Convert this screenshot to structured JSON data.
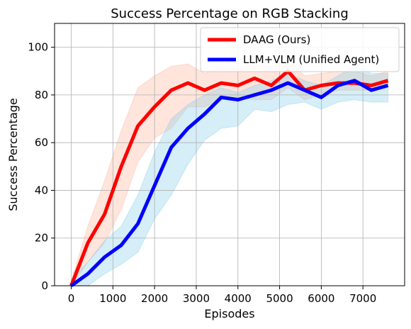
{
  "chart_data": {
    "type": "line",
    "title": "Success Percentage on RGB Stacking",
    "xlabel": "Episodes",
    "ylabel": "Success Percentage",
    "xlim": [
      -400,
      8000
    ],
    "ylim": [
      0,
      110
    ],
    "xticks": [
      0,
      1000,
      2000,
      3000,
      4000,
      5000,
      6000,
      7000
    ],
    "yticks": [
      0,
      20,
      40,
      60,
      80,
      100
    ],
    "grid": true,
    "legend_position": "top-right",
    "series": [
      {
        "name": "DAAG (Ours)",
        "color": "#ff0000",
        "band_color": "#ffb49a",
        "x": [
          0,
          400,
          800,
          1200,
          1600,
          2000,
          2400,
          2800,
          3200,
          3600,
          4000,
          4400,
          4800,
          5200,
          5600,
          6000,
          6400,
          6800,
          7200,
          7600
        ],
        "y": [
          0,
          18,
          30,
          50,
          67,
          75,
          82,
          85,
          82,
          85,
          84,
          87,
          84,
          90,
          82,
          84,
          85,
          85,
          84,
          86
        ],
        "lower": [
          0,
          10,
          18,
          32,
          52,
          62,
          66,
          75,
          75,
          78,
          79,
          78,
          78,
          83,
          78,
          80,
          82,
          82,
          82,
          83
        ],
        "upper": [
          2,
          25,
          44,
          65,
          83,
          88,
          92,
          93,
          89,
          92,
          91,
          93,
          92,
          95,
          88,
          89,
          90,
          90,
          88,
          90
        ]
      },
      {
        "name": "LLM+VLM (Unified Agent)",
        "color": "#0000ff",
        "band_color": "#87ceeb",
        "x": [
          0,
          400,
          800,
          1200,
          1600,
          2000,
          2400,
          2800,
          3200,
          3600,
          4000,
          4400,
          4800,
          5200,
          5600,
          6000,
          6400,
          6800,
          7200,
          7600
        ],
        "y": [
          0,
          5,
          12,
          17,
          26,
          42,
          58,
          66,
          72,
          79,
          78,
          80,
          82,
          85,
          82,
          79,
          84,
          86,
          82,
          84
        ],
        "lower": [
          0,
          0,
          5,
          9,
          14,
          28,
          38,
          51,
          61,
          66,
          67,
          74,
          73,
          76,
          77,
          74,
          77,
          78,
          77,
          77
        ],
        "upper": [
          2,
          10,
          19,
          25,
          38,
          56,
          70,
          76,
          80,
          83,
          81,
          84,
          86,
          89,
          86,
          84,
          88,
          92,
          89,
          89
        ]
      }
    ]
  }
}
